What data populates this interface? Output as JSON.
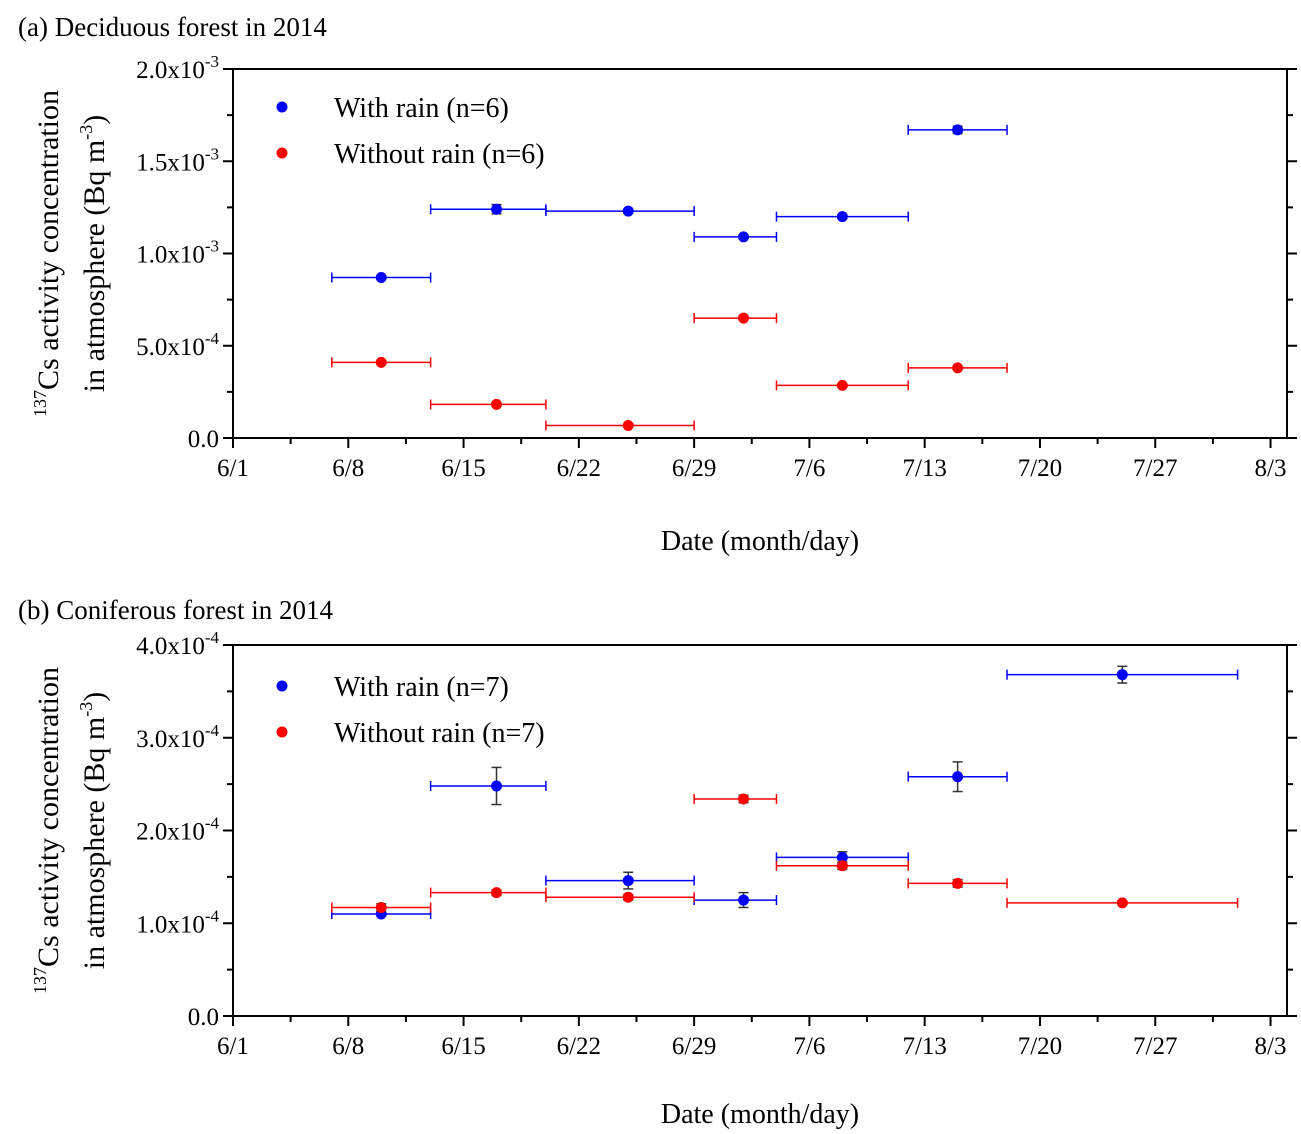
{
  "chart_data": [
    {
      "type": "scatter",
      "title": "(a) Deciduous forest in 2014",
      "xlabel": "Date (month/day)",
      "ylabel_line1": "137Cs activity concentration",
      "ylabel_line2": "in atmosphere (Bq m-3)",
      "xlim": [
        "6/1",
        "8/4"
      ],
      "xticks": [
        "6/1",
        "6/8",
        "6/15",
        "6/22",
        "6/29",
        "7/6",
        "7/13",
        "7/20",
        "7/27",
        "8/3"
      ],
      "ylim": [
        0,
        0.002
      ],
      "yticks": [
        {
          "value": 0,
          "mant": "0.0",
          "exp": ""
        },
        {
          "value": 0.0005,
          "mant": "5.0x10",
          "exp": "-4"
        },
        {
          "value": 0.001,
          "mant": "1.0x10",
          "exp": "-3"
        },
        {
          "value": 0.0015,
          "mant": "1.5x10",
          "exp": "-3"
        },
        {
          "value": 0.002,
          "mant": "2.0x10",
          "exp": "-3"
        }
      ],
      "legend_position": "top-left",
      "series": [
        {
          "name": "With rain (n=6)",
          "color": "#0000ff",
          "points": [
            {
              "date": "6/10",
              "start": "6/7",
              "end": "6/13",
              "y": 0.00087,
              "yerr": 8e-06
            },
            {
              "date": "6/17",
              "start": "6/13",
              "end": "6/20",
              "y": 0.00124,
              "yerr": 2.5e-05
            },
            {
              "date": "6/25",
              "start": "6/20",
              "end": "6/29",
              "y": 0.00123,
              "yerr": 1e-05
            },
            {
              "date": "7/2",
              "start": "6/29",
              "end": "7/4",
              "y": 0.00109,
              "yerr": 1e-05
            },
            {
              "date": "7/8",
              "start": "7/4",
              "end": "7/12",
              "y": 0.0012,
              "yerr": 1e-05
            },
            {
              "date": "7/15",
              "start": "7/12",
              "end": "7/18",
              "y": 0.00167,
              "yerr": 2e-05
            }
          ]
        },
        {
          "name": "Without rain (n=6)",
          "color": "#ff0000",
          "points": [
            {
              "date": "6/10",
              "start": "6/7",
              "end": "6/13",
              "y": 0.00041,
              "yerr": 8e-06
            },
            {
              "date": "6/17",
              "start": "6/13",
              "end": "6/20",
              "y": 0.000182,
              "yerr": 6e-06
            },
            {
              "date": "6/25",
              "start": "6/20",
              "end": "6/29",
              "y": 6.8e-05,
              "yerr": 4e-06
            },
            {
              "date": "7/2",
              "start": "6/29",
              "end": "7/4",
              "y": 0.00065,
              "yerr": 8e-06
            },
            {
              "date": "7/8",
              "start": "7/4",
              "end": "7/12",
              "y": 0.000285,
              "yerr": 6e-06
            },
            {
              "date": "7/15",
              "start": "7/12",
              "end": "7/18",
              "y": 0.00038,
              "yerr": 6e-06
            }
          ]
        }
      ]
    },
    {
      "type": "scatter",
      "title": "(b) Coniferous forest in 2014",
      "xlabel": "Date (month/day)",
      "ylabel_line1": "137Cs activity concentration",
      "ylabel_line2": "in atmosphere (Bq m-3)",
      "xlim": [
        "6/1",
        "8/4"
      ],
      "xticks": [
        "6/1",
        "6/8",
        "6/15",
        "6/22",
        "6/29",
        "7/6",
        "7/13",
        "7/20",
        "7/27",
        "8/3"
      ],
      "ylim": [
        0,
        0.0004
      ],
      "yticks": [
        {
          "value": 0,
          "mant": "0.0",
          "exp": ""
        },
        {
          "value": 0.0001,
          "mant": "1.0x10",
          "exp": "-4"
        },
        {
          "value": 0.0002,
          "mant": "2.0x10",
          "exp": "-4"
        },
        {
          "value": 0.0003,
          "mant": "3.0x10",
          "exp": "-4"
        },
        {
          "value": 0.0004,
          "mant": "4.0x10",
          "exp": "-4"
        }
      ],
      "legend_position": "top-left",
      "series": [
        {
          "name": "With rain (n=7)",
          "color": "#0000ff",
          "points": [
            {
              "date": "6/10",
              "start": "6/7",
              "end": "6/13",
              "y": 0.00011,
              "yerr": 2e-06
            },
            {
              "date": "6/17",
              "start": "6/13",
              "end": "6/20",
              "y": 0.000248,
              "yerr": 2e-05
            },
            {
              "date": "6/25",
              "start": "6/20",
              "end": "6/29",
              "y": 0.000146,
              "yerr": 9e-06
            },
            {
              "date": "7/2",
              "start": "6/29",
              "end": "7/4",
              "y": 0.000125,
              "yerr": 8e-06
            },
            {
              "date": "7/8",
              "start": "7/4",
              "end": "7/12",
              "y": 0.000171,
              "yerr": 6e-06
            },
            {
              "date": "7/15",
              "start": "7/12",
              "end": "7/18",
              "y": 0.000258,
              "yerr": 1.6e-05
            },
            {
              "date": "7/25",
              "start": "7/18",
              "end": "8/1",
              "y": 0.000368,
              "yerr": 9e-06
            }
          ]
        },
        {
          "name": "Without rain (n=7)",
          "color": "#ff0000",
          "points": [
            {
              "date": "6/10",
              "start": "6/7",
              "end": "6/13",
              "y": 0.000117,
              "yerr": 4e-06
            },
            {
              "date": "6/17",
              "start": "6/13",
              "end": "6/20",
              "y": 0.000133,
              "yerr": 3e-06
            },
            {
              "date": "6/25",
              "start": "6/20",
              "end": "6/29",
              "y": 0.000128,
              "yerr": 3e-06
            },
            {
              "date": "7/2",
              "start": "6/29",
              "end": "7/4",
              "y": 0.000234,
              "yerr": 4e-06
            },
            {
              "date": "7/8",
              "start": "7/4",
              "end": "7/12",
              "y": 0.000162,
              "yerr": 4e-06
            },
            {
              "date": "7/15",
              "start": "7/12",
              "end": "7/18",
              "y": 0.000143,
              "yerr": 4e-06
            },
            {
              "date": "7/25",
              "start": "7/18",
              "end": "8/1",
              "y": 0.000122,
              "yerr": 2e-06
            }
          ]
        }
      ]
    }
  ]
}
